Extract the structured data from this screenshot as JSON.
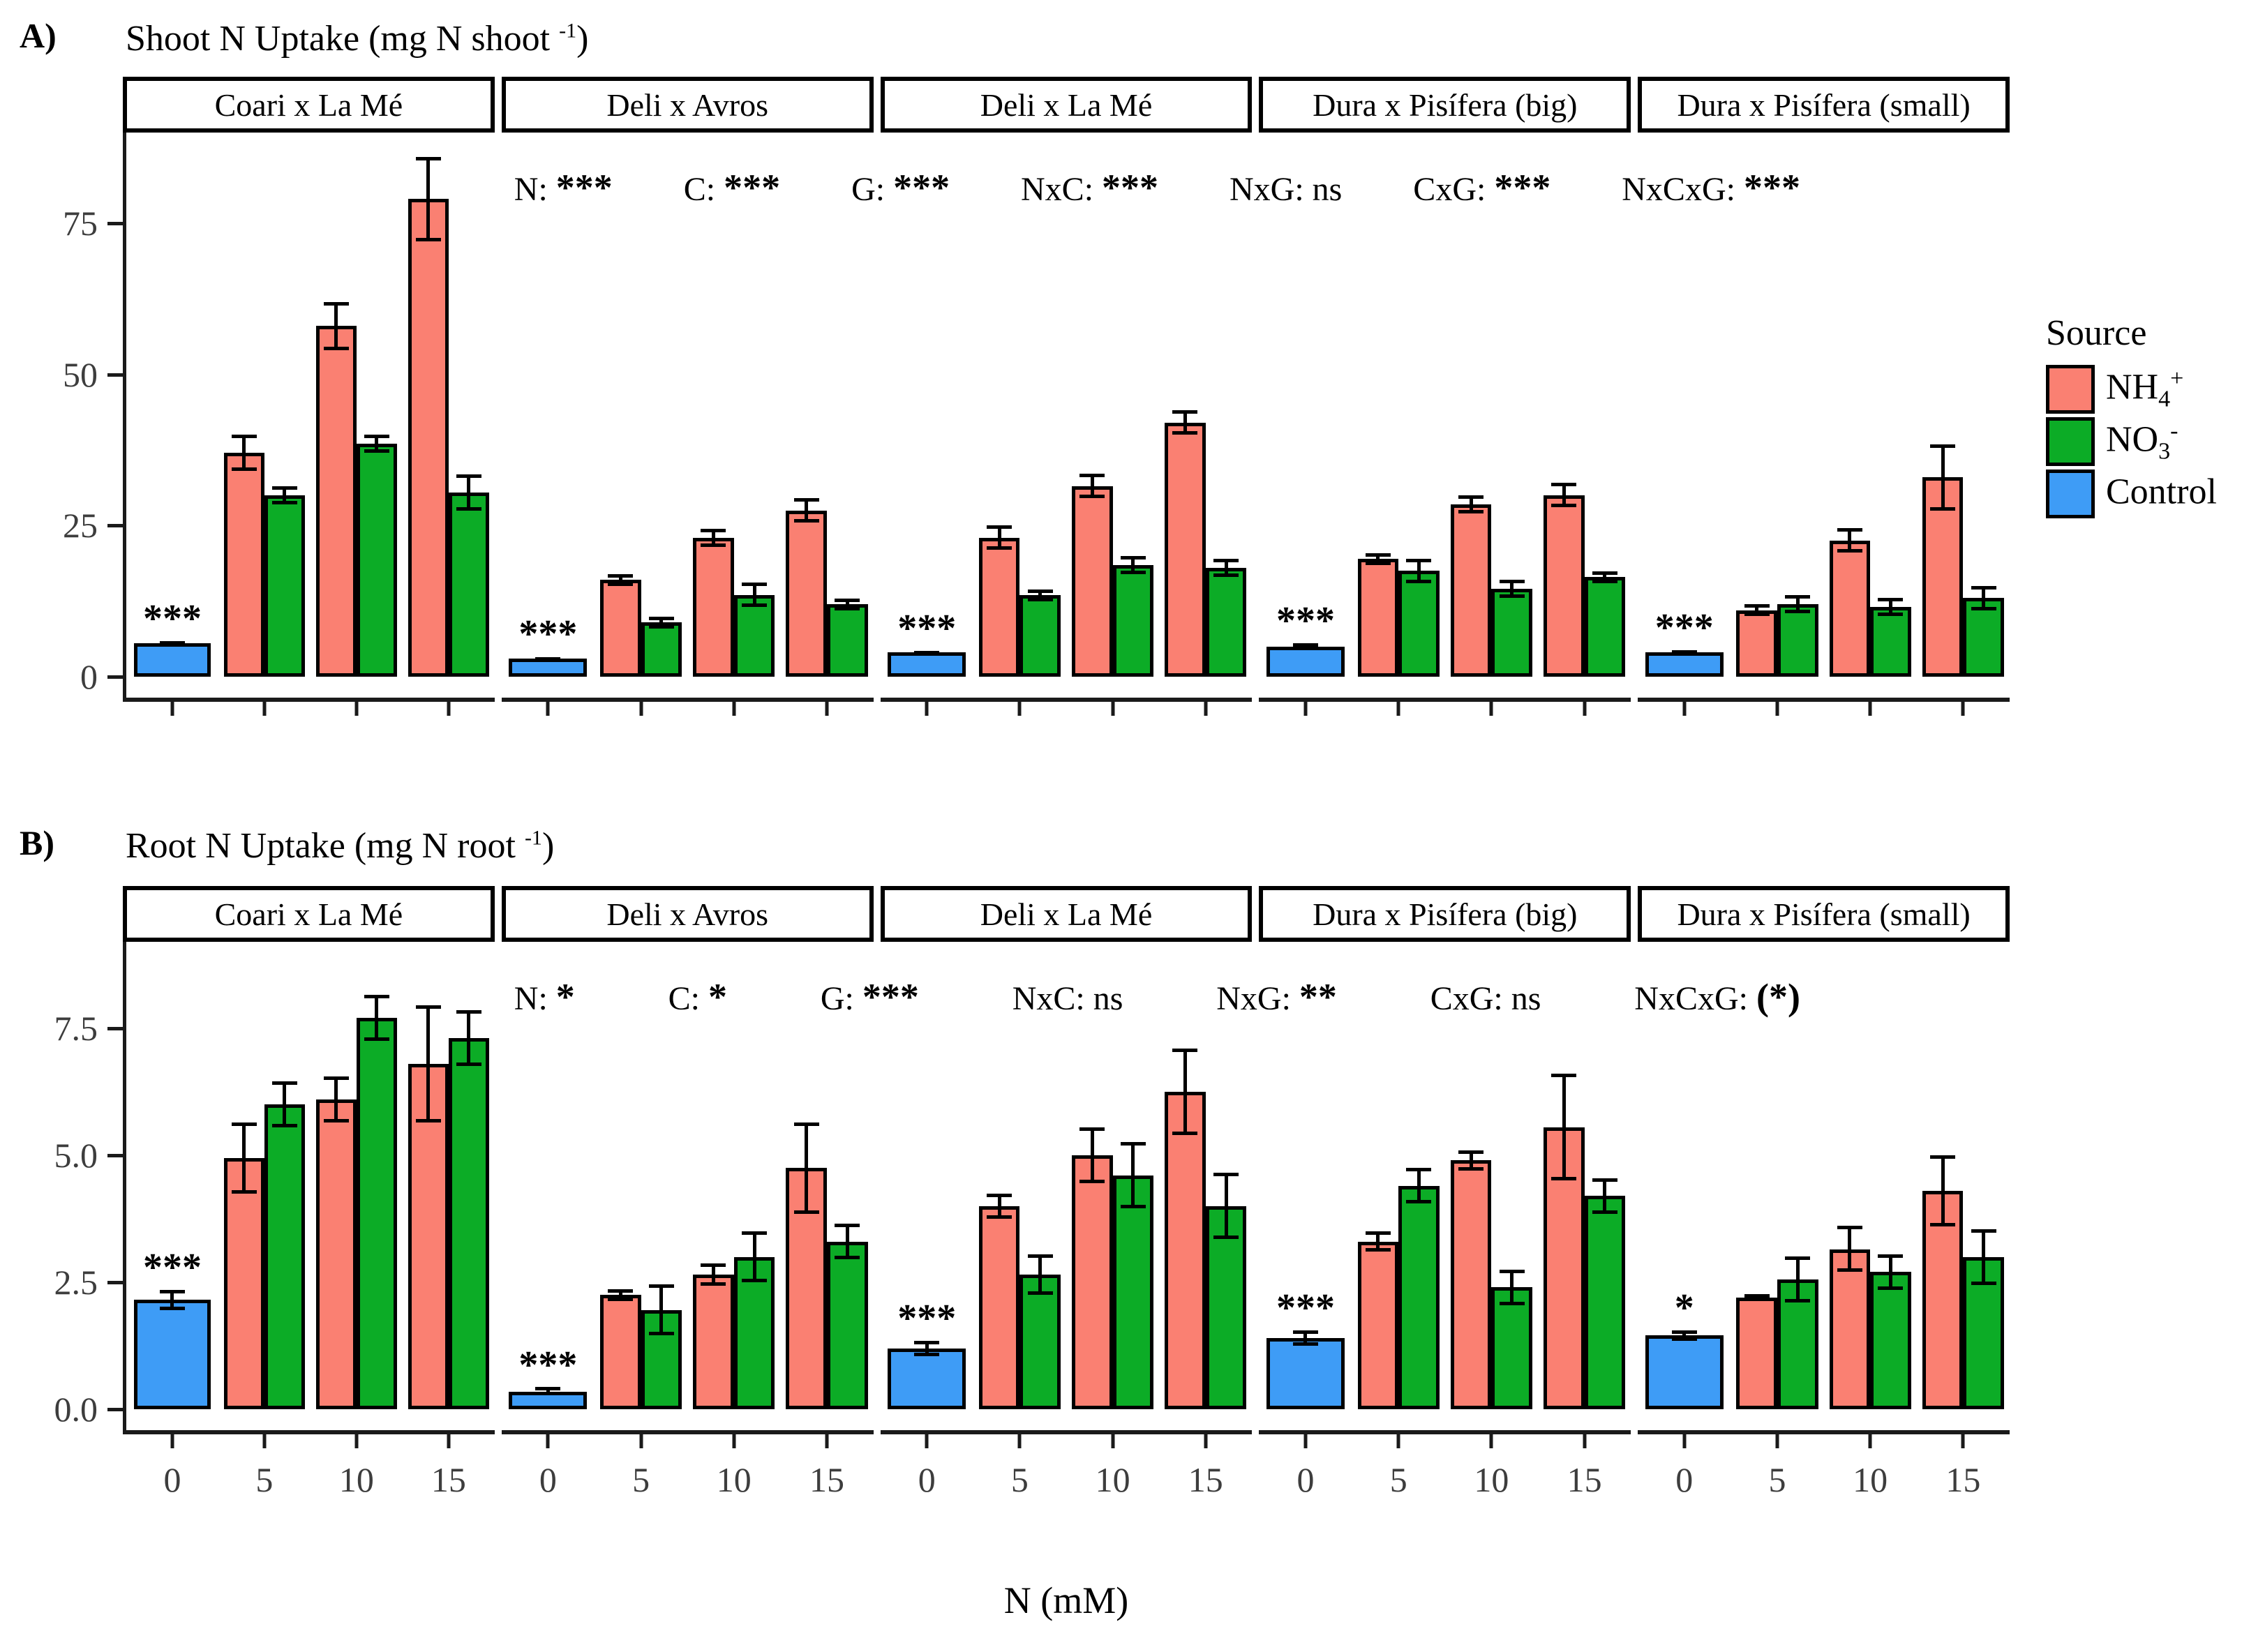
{
  "legend": {
    "title": "Source",
    "items": [
      {
        "name": "nh4",
        "base": "NH",
        "sub": "4",
        "sup": "+",
        "color": "#FA8072"
      },
      {
        "name": "no3",
        "base": "NO",
        "sub": "3",
        "sup": "-",
        "color": "#0CAC26"
      },
      {
        "name": "control",
        "base": "Control",
        "sub": "",
        "sup": "",
        "color": "#3E9CF6"
      }
    ]
  },
  "x_axis": {
    "title": "N (mM)"
  },
  "chart_data": [
    {
      "type": "bar",
      "panel_label": "A)",
      "title_main": "Shoot N Uptake (mg N shoot",
      "title_sup": "-1",
      "title_end": ")",
      "ylabel": "Shoot N Uptake (mg N shoot-1)",
      "ylim": [
        0,
        90
      ],
      "yticks": [
        0,
        25,
        50,
        75
      ],
      "ytick_labels": [
        "0",
        "25",
        "50",
        "75"
      ],
      "x_categories": [
        0,
        5,
        10,
        15
      ],
      "show_x_tick_labels": false,
      "stats": [
        {
          "factor": "N",
          "value": "***"
        },
        {
          "factor": "C",
          "value": "***"
        },
        {
          "factor": "G",
          "value": "***"
        },
        {
          "factor": "NxC",
          "value": "***"
        },
        {
          "factor": "NxG",
          "value": "ns"
        },
        {
          "factor": "CxG",
          "value": "***"
        },
        {
          "factor": "NxCxG",
          "value": "***"
        }
      ],
      "facets": [
        {
          "name": "Coari x La Mé",
          "control": {
            "value": 5.5,
            "error": 0.4,
            "sig": "***"
          },
          "groups": [
            {
              "n": 5,
              "nh4": {
                "value": 37,
                "error": 3
              },
              "no3": {
                "value": 30,
                "error": 1.5
              }
            },
            {
              "n": 10,
              "nh4": {
                "value": 58,
                "error": 4
              },
              "no3": {
                "value": 38.5,
                "error": 1.5
              }
            },
            {
              "n": 15,
              "nh4": {
                "value": 79,
                "error": 7
              },
              "no3": {
                "value": 30.5,
                "error": 3
              }
            }
          ]
        },
        {
          "name": "Deli x Avros",
          "control": {
            "value": 3,
            "error": 0.3,
            "sig": "***"
          },
          "groups": [
            {
              "n": 5,
              "nh4": {
                "value": 16,
                "error": 1
              },
              "no3": {
                "value": 9,
                "error": 1
              }
            },
            {
              "n": 10,
              "nh4": {
                "value": 23,
                "error": 1.5
              },
              "no3": {
                "value": 13.5,
                "error": 2
              }
            },
            {
              "n": 15,
              "nh4": {
                "value": 27.5,
                "error": 2
              },
              "no3": {
                "value": 12,
                "error": 1
              }
            }
          ]
        },
        {
          "name": "Deli x La Mé",
          "control": {
            "value": 4,
            "error": 0.3,
            "sig": "***"
          },
          "groups": [
            {
              "n": 5,
              "nh4": {
                "value": 23,
                "error": 2
              },
              "no3": {
                "value": 13.5,
                "error": 1
              }
            },
            {
              "n": 10,
              "nh4": {
                "value": 31.5,
                "error": 2
              },
              "no3": {
                "value": 18.5,
                "error": 1.5
              }
            },
            {
              "n": 15,
              "nh4": {
                "value": 42,
                "error": 2
              },
              "no3": {
                "value": 18,
                "error": 1.5
              }
            }
          ]
        },
        {
          "name": "Dura x Pisífera (big)",
          "control": {
            "value": 5,
            "error": 0.5,
            "sig": "***"
          },
          "groups": [
            {
              "n": 5,
              "nh4": {
                "value": 19.5,
                "error": 1
              },
              "no3": {
                "value": 17.5,
                "error": 2
              }
            },
            {
              "n": 10,
              "nh4": {
                "value": 28.5,
                "error": 1.5
              },
              "no3": {
                "value": 14.5,
                "error": 1.5
              }
            },
            {
              "n": 15,
              "nh4": {
                "value": 30,
                "error": 2
              },
              "no3": {
                "value": 16.5,
                "error": 1
              }
            }
          ]
        },
        {
          "name": "Dura x Pisífera (small)",
          "control": {
            "value": 4,
            "error": 0.4,
            "sig": "***"
          },
          "groups": [
            {
              "n": 5,
              "nh4": {
                "value": 11,
                "error": 1
              },
              "no3": {
                "value": 12,
                "error": 1.5
              }
            },
            {
              "n": 10,
              "nh4": {
                "value": 22.5,
                "error": 2
              },
              "no3": {
                "value": 11.5,
                "error": 1.5
              }
            },
            {
              "n": 15,
              "nh4": {
                "value": 33,
                "error": 5.5
              },
              "no3": {
                "value": 13,
                "error": 2
              }
            }
          ]
        }
      ]
    },
    {
      "type": "bar",
      "panel_label": "B)",
      "title_main": "Root N Uptake (mg N root",
      "title_sup": "-1",
      "title_end": ")",
      "ylabel": "Root N Uptake (mg N root-1)",
      "ylim": [
        0,
        9.2
      ],
      "yticks": [
        0,
        2.5,
        5,
        7.5
      ],
      "ytick_labels": [
        "0.0",
        "2.5",
        "5.0",
        "7.5"
      ],
      "x_categories": [
        0,
        5,
        10,
        15
      ],
      "show_x_tick_labels": true,
      "stats": [
        {
          "factor": "N",
          "value": "*"
        },
        {
          "factor": "C",
          "value": "*"
        },
        {
          "factor": "G",
          "value": "***"
        },
        {
          "factor": "NxC",
          "value": "ns"
        },
        {
          "factor": "NxG",
          "value": "**"
        },
        {
          "factor": "CxG",
          "value": "ns"
        },
        {
          "factor": "NxCxG",
          "value": "(*)"
        }
      ],
      "facets": [
        {
          "name": "Coari x La Mé",
          "control": {
            "value": 2.15,
            "error": 0.2,
            "sig": "***"
          },
          "groups": [
            {
              "n": 5,
              "nh4": {
                "value": 4.95,
                "error": 0.7
              },
              "no3": {
                "value": 6.0,
                "error": 0.45
              }
            },
            {
              "n": 10,
              "nh4": {
                "value": 6.1,
                "error": 0.45
              },
              "no3": {
                "value": 7.7,
                "error": 0.45
              }
            },
            {
              "n": 15,
              "nh4": {
                "value": 6.8,
                "error": 1.15
              },
              "no3": {
                "value": 7.3,
                "error": 0.55
              }
            }
          ]
        },
        {
          "name": "Deli x Avros",
          "control": {
            "value": 0.35,
            "error": 0.08,
            "sig": "***"
          },
          "groups": [
            {
              "n": 5,
              "nh4": {
                "value": 2.25,
                "error": 0.12
              },
              "no3": {
                "value": 1.95,
                "error": 0.5
              }
            },
            {
              "n": 10,
              "nh4": {
                "value": 2.65,
                "error": 0.22
              },
              "no3": {
                "value": 3.0,
                "error": 0.5
              }
            },
            {
              "n": 15,
              "nh4": {
                "value": 4.75,
                "error": 0.9
              },
              "no3": {
                "value": 3.3,
                "error": 0.35
              }
            }
          ]
        },
        {
          "name": "Deli x La Mé",
          "control": {
            "value": 1.2,
            "error": 0.15,
            "sig": "***"
          },
          "groups": [
            {
              "n": 5,
              "nh4": {
                "value": 4.0,
                "error": 0.25
              },
              "no3": {
                "value": 2.65,
                "error": 0.4
              }
            },
            {
              "n": 10,
              "nh4": {
                "value": 5.0,
                "error": 0.55
              },
              "no3": {
                "value": 4.6,
                "error": 0.65
              }
            },
            {
              "n": 15,
              "nh4": {
                "value": 6.25,
                "error": 0.85
              },
              "no3": {
                "value": 4.0,
                "error": 0.65
              }
            }
          ]
        },
        {
          "name": "Dura x Pisífera (big)",
          "control": {
            "value": 1.4,
            "error": 0.15,
            "sig": "***"
          },
          "groups": [
            {
              "n": 5,
              "nh4": {
                "value": 3.3,
                "error": 0.2
              },
              "no3": {
                "value": 4.4,
                "error": 0.35
              }
            },
            {
              "n": 10,
              "nh4": {
                "value": 4.9,
                "error": 0.2
              },
              "no3": {
                "value": 2.4,
                "error": 0.35
              }
            },
            {
              "n": 15,
              "nh4": {
                "value": 5.55,
                "error": 1.05
              },
              "no3": {
                "value": 4.2,
                "error": 0.35
              }
            }
          ]
        },
        {
          "name": "Dura x Pisífera (small)",
          "control": {
            "value": 1.45,
            "error": 0.1,
            "sig": "*"
          },
          "groups": [
            {
              "n": 5,
              "nh4": {
                "value": 2.2,
                "error": 0.07
              },
              "no3": {
                "value": 2.55,
                "error": 0.45
              }
            },
            {
              "n": 10,
              "nh4": {
                "value": 3.15,
                "error": 0.45
              },
              "no3": {
                "value": 2.7,
                "error": 0.35
              }
            },
            {
              "n": 15,
              "nh4": {
                "value": 4.3,
                "error": 0.7
              },
              "no3": {
                "value": 3.0,
                "error": 0.55
              }
            }
          ]
        }
      ]
    }
  ]
}
